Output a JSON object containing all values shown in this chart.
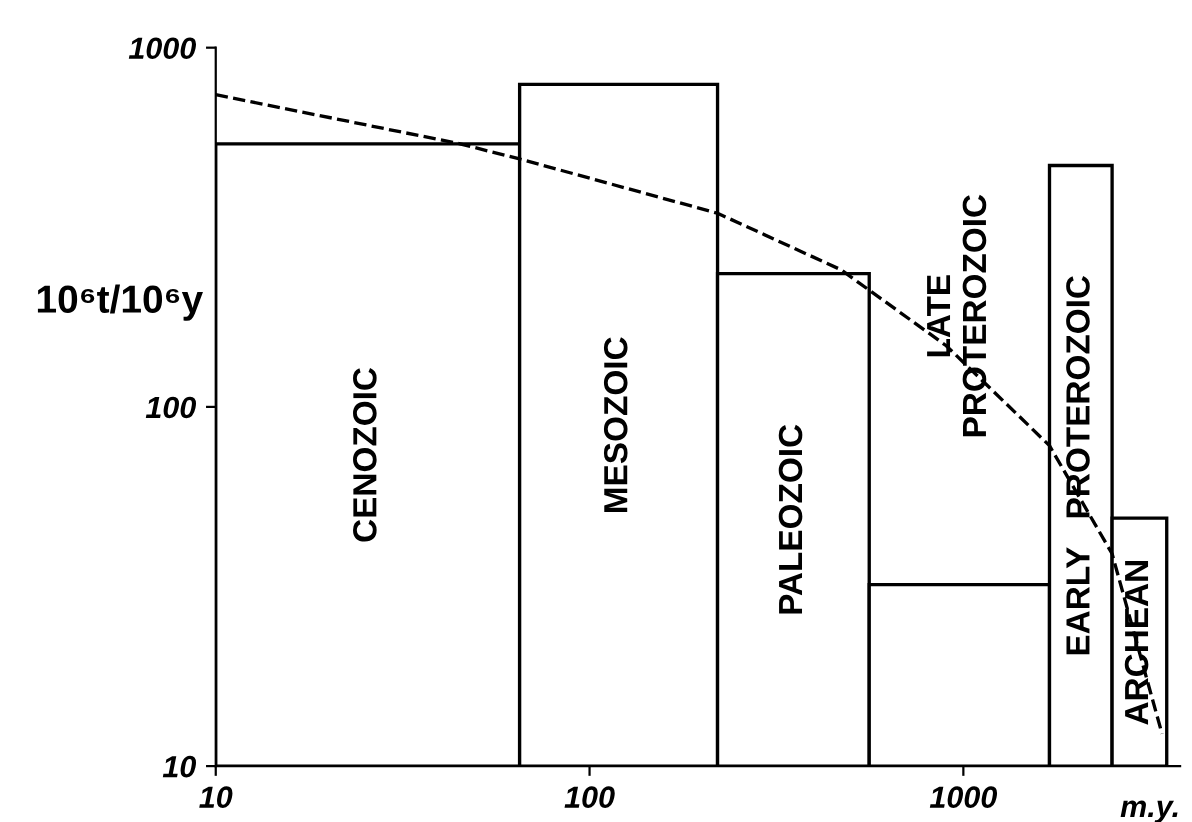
{
  "chart_data": {
    "type": "histogram",
    "ylabel": "10⁶t/10⁶y",
    "xlabel": "m.y.",
    "log": "xy",
    "bins": [
      10,
      65,
      220,
      560,
      1700,
      2500,
      3500
    ],
    "values": [
      540,
      790,
      235,
      32,
      470,
      49
    ],
    "color": "#ffffff",
    "series": [
      {
        "type": "line",
        "line_style": "dashed",
        "color": "#000000",
        "x": [
          10,
          45,
          65,
          83,
          220,
          470,
          900,
          1700,
          2500,
          3400
        ],
        "values": [
          740,
          540,
          490,
          457,
          346,
          241,
          148,
          78,
          39,
          12.3
        ]
      }
    ],
    "xlim": [
      10,
      3800
    ],
    "ylim": [
      10,
      1000
    ],
    "xticks": [
      10,
      100,
      1000
    ],
    "yticks": [
      10,
      100,
      1000
    ],
    "grid": false,
    "legend": false,
    "annotations": [
      "CENOZOIC",
      "MESOZOIC",
      "PALEOZOIC",
      "LATE\nPROTEROZOIC",
      "EARLY   PROTEROZOIC",
      "ARCHEAN"
    ]
  }
}
